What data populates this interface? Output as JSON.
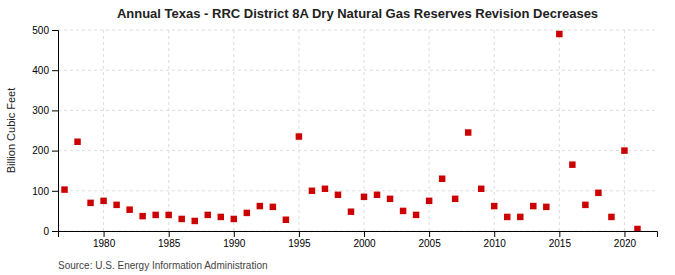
{
  "chart_data": {
    "type": "scatter",
    "title": "Annual Texas - RRC District 8A Dry Natural Gas Reserves Revision Decreases",
    "ylabel": "Billion Cubic Feet",
    "source": "Source: U.S. Energy Information Administration",
    "color": "#cc0000",
    "marker": "square",
    "grid": true,
    "xlim": [
      1976.5,
      2022.5
    ],
    "ylim": [
      0,
      500
    ],
    "xticks": [
      1980,
      1985,
      1990,
      1995,
      2000,
      2005,
      2010,
      2015,
      2020
    ],
    "yticks": [
      0,
      100,
      200,
      300,
      400,
      500
    ],
    "x": [
      1977,
      1978,
      1979,
      1980,
      1981,
      1982,
      1983,
      1984,
      1985,
      1986,
      1987,
      1988,
      1989,
      1990,
      1991,
      1992,
      1993,
      1994,
      1995,
      1996,
      1997,
      1998,
      1999,
      2000,
      2001,
      2002,
      2003,
      2004,
      2005,
      2006,
      2007,
      2008,
      2009,
      2010,
      2011,
      2012,
      2013,
      2014,
      2015,
      2016,
      2017,
      2018,
      2019,
      2020,
      2021
    ],
    "values": [
      103,
      222,
      70,
      75,
      65,
      53,
      37,
      40,
      40,
      30,
      25,
      40,
      35,
      30,
      45,
      62,
      60,
      28,
      235,
      100,
      105,
      90,
      48,
      85,
      90,
      80,
      50,
      40,
      75,
      130,
      80,
      245,
      105,
      62,
      35,
      35,
      62,
      60,
      490,
      165,
      65,
      95,
      35,
      200,
      5
    ]
  }
}
